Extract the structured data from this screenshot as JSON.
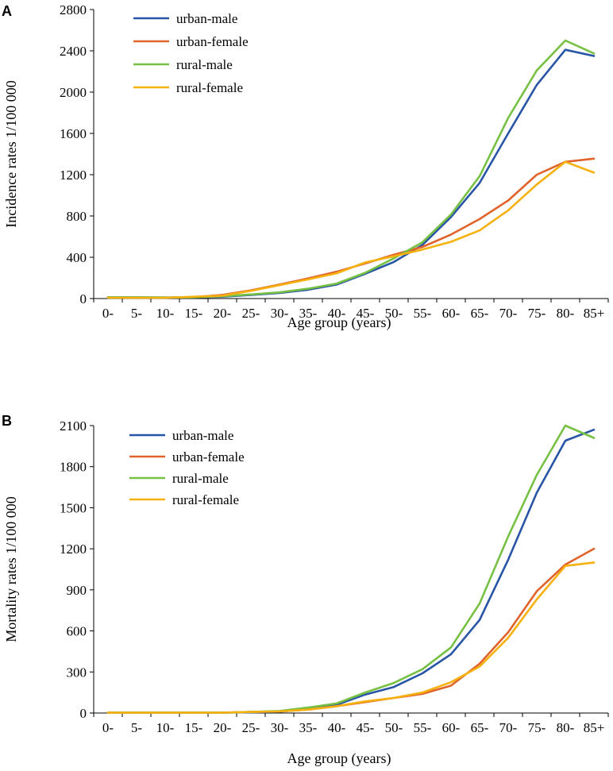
{
  "chart_data": [
    {
      "panel": "A",
      "type": "line",
      "xlabel": "Age group (years)",
      "ylabel": "Incidence rates 1/100 000",
      "ylim": [
        0,
        2800
      ],
      "yticks": [
        0,
        400,
        800,
        1200,
        1600,
        2000,
        2400,
        2800
      ],
      "categories": [
        "0-",
        "5-",
        "10-",
        "15-",
        "20-",
        "25-",
        "30-",
        "35-",
        "40-",
        "45-",
        "50-",
        "55-",
        "60-",
        "65-",
        "70-",
        "75-",
        "80-",
        "85+"
      ],
      "legend_position": "top-left",
      "series": [
        {
          "name": "urban-male",
          "color": "#2855A6",
          "values": [
            12,
            12,
            10,
            12,
            18,
            35,
            55,
            85,
            135,
            240,
            355,
            520,
            790,
            1120,
            1600,
            2070,
            2410,
            2350
          ]
        },
        {
          "name": "urban-female",
          "color": "#E0632B",
          "values": [
            10,
            8,
            8,
            14,
            35,
            80,
            135,
            195,
            260,
            340,
            425,
            500,
            620,
            770,
            950,
            1200,
            1325,
            1355
          ]
        },
        {
          "name": "rural-male",
          "color": "#76C043",
          "values": [
            12,
            12,
            10,
            12,
            22,
            40,
            60,
            95,
            145,
            250,
            390,
            545,
            815,
            1185,
            1750,
            2210,
            2500,
            2375
          ]
        },
        {
          "name": "rural-female",
          "color": "#F5B10F",
          "values": [
            8,
            8,
            8,
            18,
            28,
            75,
            130,
            185,
            245,
            350,
            410,
            475,
            550,
            660,
            855,
            1105,
            1325,
            1220
          ]
        }
      ]
    },
    {
      "panel": "B",
      "type": "line",
      "xlabel": "Age group (years)",
      "ylabel": "Mortality rates 1/100 000",
      "ylim": [
        0,
        2100
      ],
      "yticks": [
        0,
        300,
        600,
        900,
        1200,
        1500,
        1800,
        2100
      ],
      "categories": [
        "0-",
        "5-",
        "10-",
        "15-",
        "20-",
        "25-",
        "30-",
        "35-",
        "40-",
        "45-",
        "50-",
        "55-",
        "60-",
        "65-",
        "70-",
        "75-",
        "80-",
        "85+"
      ],
      "legend_position": "top-left",
      "series": [
        {
          "name": "urban-male",
          "color": "#2855A6",
          "values": [
            3,
            3,
            3,
            3,
            3,
            5,
            10,
            30,
            60,
            135,
            190,
            290,
            430,
            680,
            1120,
            1610,
            1990,
            2070
          ]
        },
        {
          "name": "urban-female",
          "color": "#E0632B",
          "values": [
            3,
            3,
            3,
            3,
            3,
            8,
            12,
            25,
            50,
            80,
            110,
            140,
            200,
            360,
            590,
            890,
            1085,
            1200
          ]
        },
        {
          "name": "rural-male",
          "color": "#76C043",
          "values": [
            3,
            3,
            3,
            3,
            3,
            8,
            15,
            40,
            70,
            150,
            220,
            320,
            480,
            800,
            1290,
            1740,
            2100,
            2010
          ]
        },
        {
          "name": "rural-female",
          "color": "#F5B10F",
          "values": [
            3,
            3,
            3,
            3,
            3,
            8,
            12,
            25,
            50,
            85,
            110,
            150,
            225,
            340,
            550,
            830,
            1075,
            1100
          ]
        }
      ]
    }
  ]
}
